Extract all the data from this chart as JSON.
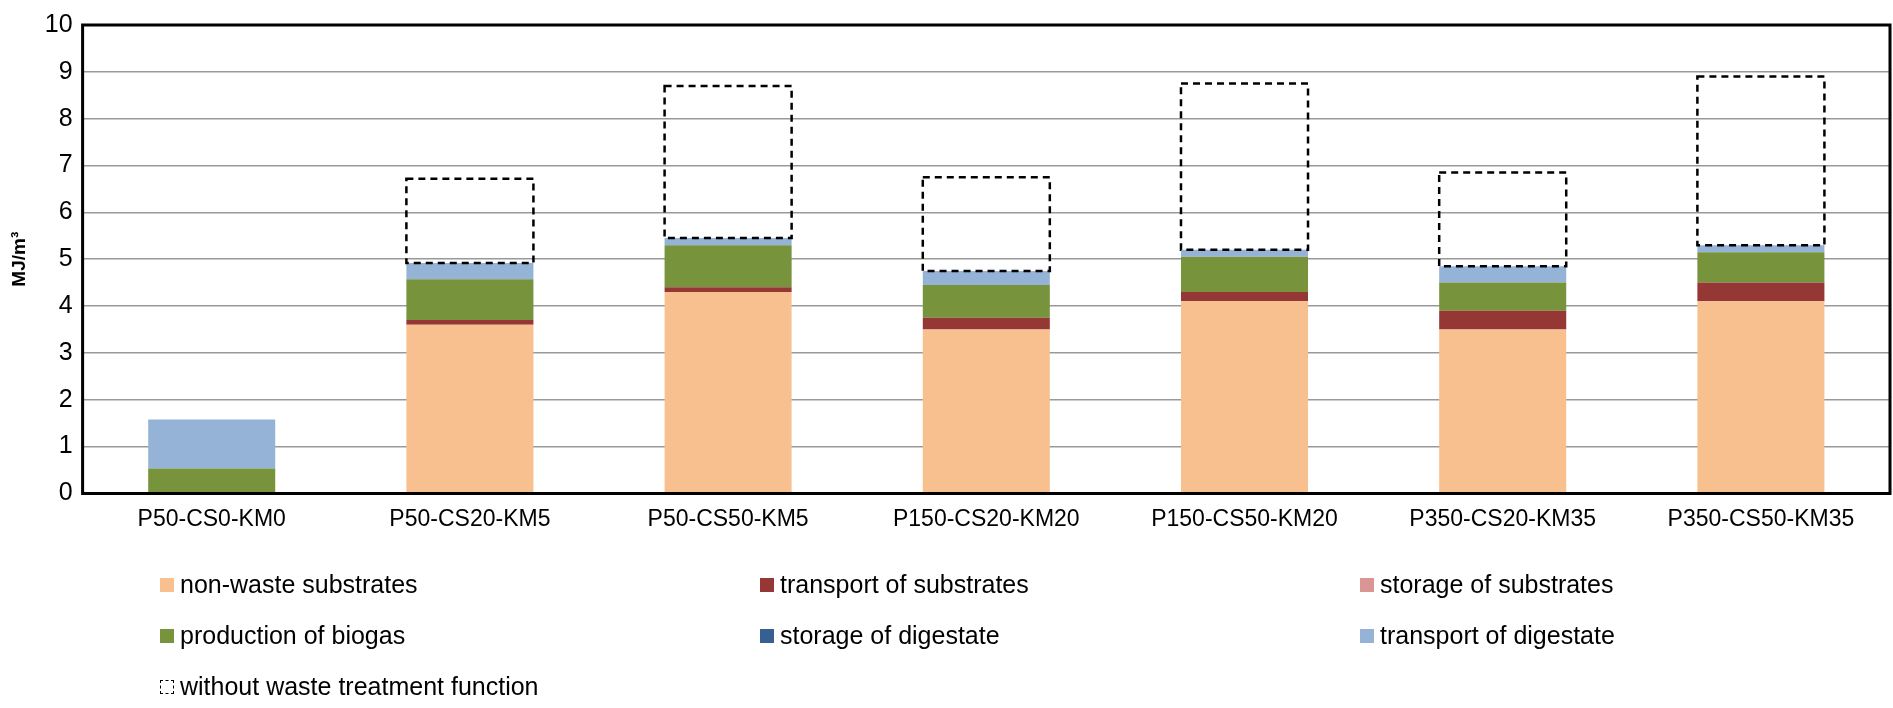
{
  "chart_data": {
    "type": "bar",
    "stacked": true,
    "ylabel": "MJ/m³",
    "categories": [
      "P50-CS0-KM0",
      "P50-CS20-KM5",
      "P50-CS50-KM5",
      "P150-CS20-KM20",
      "P150-CS50-KM20",
      "P350-CS20-KM35",
      "P350-CS50-KM35"
    ],
    "ylim": [
      0,
      10
    ],
    "yticks": [
      0,
      1,
      2,
      3,
      4,
      5,
      6,
      7,
      8,
      9,
      10
    ],
    "grid": "y",
    "legend": "bottom",
    "series": [
      {
        "name": "non-waste substrates",
        "color": "#f9c08f",
        "values": [
          0,
          3.6,
          4.3,
          3.5,
          4.1,
          3.5,
          4.1
        ]
      },
      {
        "name": "transport of substrates",
        "color": "#953735",
        "values": [
          0.03,
          0.1,
          0.1,
          0.25,
          0.2,
          0.4,
          0.4
        ]
      },
      {
        "name": "storage of substrates",
        "color": "#d99694",
        "values": [
          0,
          0,
          0,
          0,
          0,
          0,
          0
        ]
      },
      {
        "name": "production of biogas",
        "color": "#77933c",
        "values": [
          0.5,
          0.87,
          0.9,
          0.7,
          0.75,
          0.6,
          0.65
        ]
      },
      {
        "name": "storage of digestate",
        "color": "#376092",
        "values": [
          0,
          0,
          0,
          0,
          0,
          0,
          0
        ]
      },
      {
        "name": "transport of digestate",
        "color": "#95b3d7",
        "values": [
          1.05,
          0.35,
          0.15,
          0.3,
          0.15,
          0.35,
          0.15
        ]
      },
      {
        "name": "without waste treatment function",
        "color": "#000000",
        "line_style": "dashed",
        "values": [
          null,
          1.8,
          3.25,
          2.0,
          3.55,
          2.0,
          3.6
        ]
      }
    ]
  }
}
